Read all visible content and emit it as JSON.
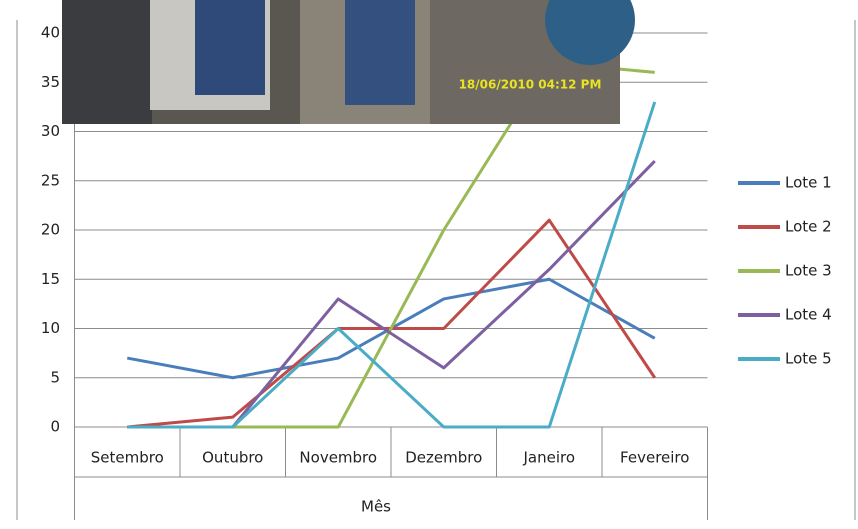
{
  "chart_data": {
    "type": "line",
    "x_label": "Mês",
    "annotation": "18/06/2010 04:12 PM",
    "categories": [
      "Setembro",
      "Outubro",
      "Novembro",
      "Dezembro",
      "Janeiro",
      "Fevereiro"
    ],
    "series": [
      {
        "name": "Lote 1",
        "color": "#4a7ebb",
        "values": [
          7,
          5,
          7,
          13,
          15,
          9
        ]
      },
      {
        "name": "Lote 2",
        "color": "#be4b48",
        "values": [
          0,
          1,
          10,
          10,
          21,
          5
        ]
      },
      {
        "name": "Lote 3",
        "color": "#98b954",
        "values": [
          0,
          0,
          0,
          20,
          37,
          36
        ]
      },
      {
        "name": "Lote 4",
        "color": "#7d60a0",
        "values": [
          0,
          0,
          13,
          6,
          16,
          27
        ]
      },
      {
        "name": "Lote 5",
        "color": "#4bacc6",
        "values": [
          0,
          0,
          10,
          0,
          0,
          33
        ]
      }
    ],
    "ylim": [
      0,
      40
    ],
    "yticks": [
      0,
      5,
      10,
      15,
      20,
      25,
      30,
      35,
      40
    ],
    "grid": true,
    "legend": "right"
  }
}
